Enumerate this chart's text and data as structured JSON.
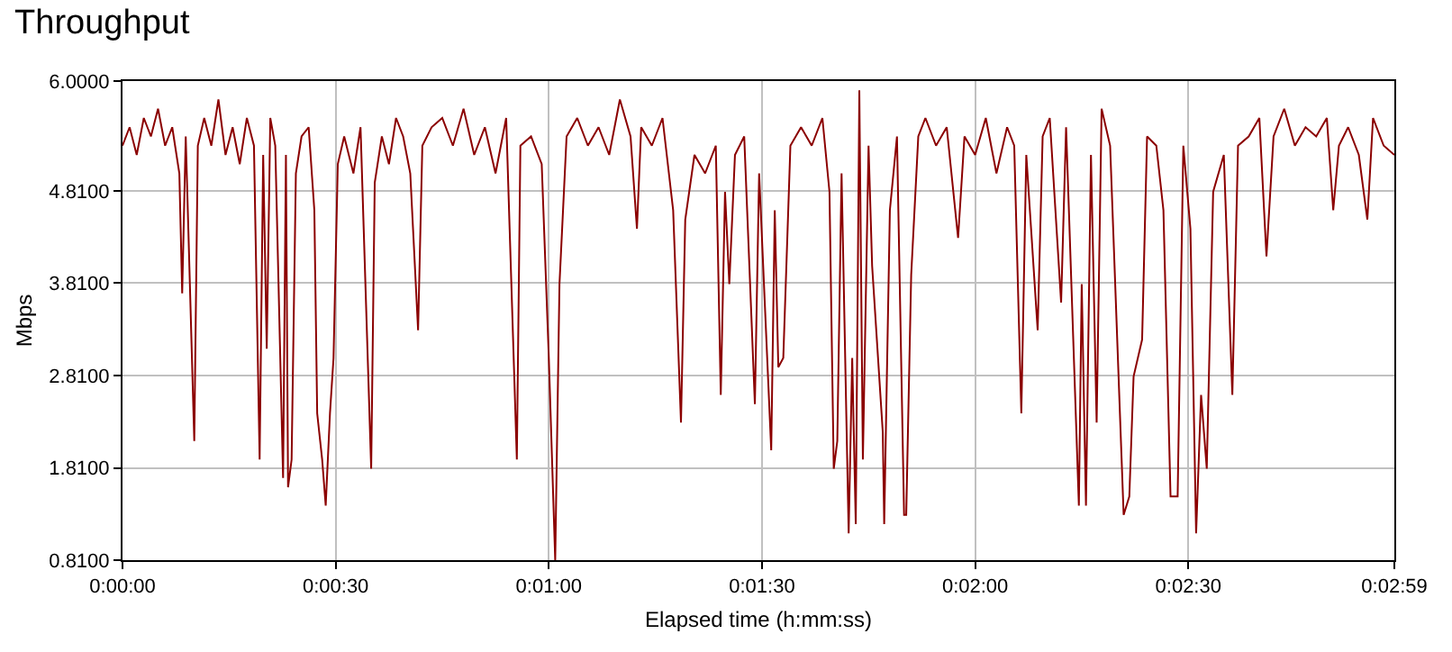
{
  "chart_data": {
    "type": "line",
    "title": "Throughput",
    "xlabel": "Elapsed time (h:mm:ss)",
    "ylabel": "Mbps",
    "x": [
      0,
      1,
      2,
      3,
      4,
      5,
      6,
      7,
      8,
      8.4,
      8.9,
      10.1,
      10.6,
      11.5,
      12.5,
      13.5,
      14.5,
      15.5,
      16.5,
      17.5,
      18.5,
      19.3,
      19.8,
      20.3,
      20.8,
      21.5,
      22.6,
      23.0,
      23.3,
      23.8,
      24.4,
      25.2,
      26.2,
      27.0,
      27.4,
      28.1,
      28.6,
      29.2,
      29.7,
      30.3,
      31.2,
      32.5,
      33.5,
      35.0,
      35.5,
      36.5,
      37.5,
      38.5,
      39.5,
      40.5,
      41.6,
      42.2,
      43.5,
      45,
      46.5,
      48,
      49.5,
      51,
      52.5,
      54,
      55.5,
      56,
      57.5,
      59,
      60,
      60.9,
      61.5,
      62.5,
      64,
      65.5,
      67,
      68.5,
      70,
      71.5,
      72.4,
      73,
      74.5,
      76,
      77.5,
      78.6,
      79.2,
      80.5,
      82,
      83.5,
      84.2,
      84.8,
      85.4,
      86.2,
      87.5,
      89.0,
      89.6,
      91.3,
      91.8,
      92.3,
      93.0,
      94,
      95.5,
      97,
      98.5,
      99.5,
      100.1,
      100.6,
      101.2,
      102.2,
      102.7,
      103.2,
      103.7,
      104.2,
      105,
      105.5,
      107.0,
      107.2,
      108,
      109,
      110.0,
      110.3,
      111,
      112,
      113,
      114.5,
      116,
      117.6,
      118.5,
      120,
      121.5,
      123,
      124.5,
      125.5,
      126.5,
      127.2,
      128.8,
      129.5,
      130.5,
      132.1,
      132.8,
      134.6,
      135.0,
      135.6,
      136.3,
      137.1,
      137.8,
      139,
      140.9,
      141.7,
      142.3,
      143.5,
      144.2,
      145.5,
      146.5,
      147.5,
      148.5,
      149.3,
      150.3,
      151.1,
      151.8,
      152.6,
      153.5,
      155,
      156.2,
      157,
      158.5,
      160,
      161.0,
      162,
      163.5,
      165,
      166.5,
      168,
      169.5,
      170.4,
      171.2,
      172.5,
      174,
      175.2,
      176,
      177.5,
      179
    ],
    "series": [
      {
        "color": "#8b0000",
        "values": [
          5.3,
          5.5,
          5.2,
          5.6,
          5.4,
          5.7,
          5.3,
          5.5,
          5.0,
          3.7,
          5.4,
          2.1,
          5.3,
          5.6,
          5.3,
          5.8,
          5.2,
          5.5,
          5.1,
          5.6,
          5.3,
          1.9,
          5.2,
          3.1,
          5.6,
          5.3,
          1.7,
          5.2,
          1.6,
          1.9,
          5.0,
          5.4,
          5.5,
          4.6,
          2.4,
          1.9,
          1.4,
          2.4,
          3.0,
          5.1,
          5.4,
          5.0,
          5.5,
          1.8,
          4.9,
          5.4,
          5.1,
          5.6,
          5.4,
          5.0,
          3.3,
          5.3,
          5.5,
          5.6,
          5.3,
          5.7,
          5.2,
          5.5,
          5.0,
          5.6,
          1.9,
          5.3,
          5.4,
          5.1,
          3.0,
          0.81,
          3.8,
          5.4,
          5.6,
          5.3,
          5.5,
          5.2,
          5.8,
          5.4,
          4.4,
          5.5,
          5.3,
          5.6,
          4.6,
          2.3,
          4.5,
          5.2,
          5.0,
          5.3,
          2.6,
          4.8,
          3.8,
          5.2,
          5.4,
          2.5,
          5.0,
          2.0,
          4.6,
          2.9,
          3.0,
          5.3,
          5.5,
          5.3,
          5.6,
          4.8,
          1.8,
          2.1,
          5.0,
          1.1,
          3.0,
          1.2,
          5.9,
          1.9,
          5.3,
          4.0,
          2.2,
          1.2,
          4.6,
          5.4,
          1.3,
          1.3,
          3.9,
          5.4,
          5.6,
          5.3,
          5.5,
          4.3,
          5.4,
          5.2,
          5.6,
          5.0,
          5.5,
          5.3,
          2.4,
          5.2,
          3.3,
          5.4,
          5.6,
          3.6,
          5.5,
          1.4,
          3.8,
          1.4,
          5.2,
          2.3,
          5.7,
          5.3,
          1.3,
          1.5,
          2.8,
          3.2,
          5.4,
          5.3,
          4.6,
          1.5,
          1.5,
          5.3,
          4.4,
          1.1,
          2.6,
          1.8,
          4.8,
          5.2,
          2.6,
          5.3,
          5.4,
          5.6,
          4.1,
          5.4,
          5.7,
          5.3,
          5.5,
          5.4,
          5.6,
          4.6,
          5.3,
          5.5,
          5.2,
          4.5,
          5.6,
          5.3,
          5.2
        ]
      }
    ],
    "xlim": [
      0,
      179
    ],
    "xticks": [
      {
        "value": 0,
        "label": "0:00:00"
      },
      {
        "value": 30,
        "label": "0:00:30"
      },
      {
        "value": 60,
        "label": "0:01:00"
      },
      {
        "value": 90,
        "label": "0:01:30"
      },
      {
        "value": 120,
        "label": "0:02:00"
      },
      {
        "value": 150,
        "label": "0:02:30"
      },
      {
        "value": 179,
        "label": "0:02:59"
      }
    ],
    "ylim": [
      0.81,
      6.0
    ],
    "yticks": [
      {
        "value": 0.81,
        "label": "0.8100"
      },
      {
        "value": 1.81,
        "label": "1.8100"
      },
      {
        "value": 2.81,
        "label": "2.8100"
      },
      {
        "value": 3.81,
        "label": "3.8100"
      },
      {
        "value": 4.81,
        "label": "4.8100"
      },
      {
        "value": 6.0,
        "label": "6.0000"
      }
    ],
    "grid": true,
    "marker": "none",
    "line_style": "solid"
  }
}
